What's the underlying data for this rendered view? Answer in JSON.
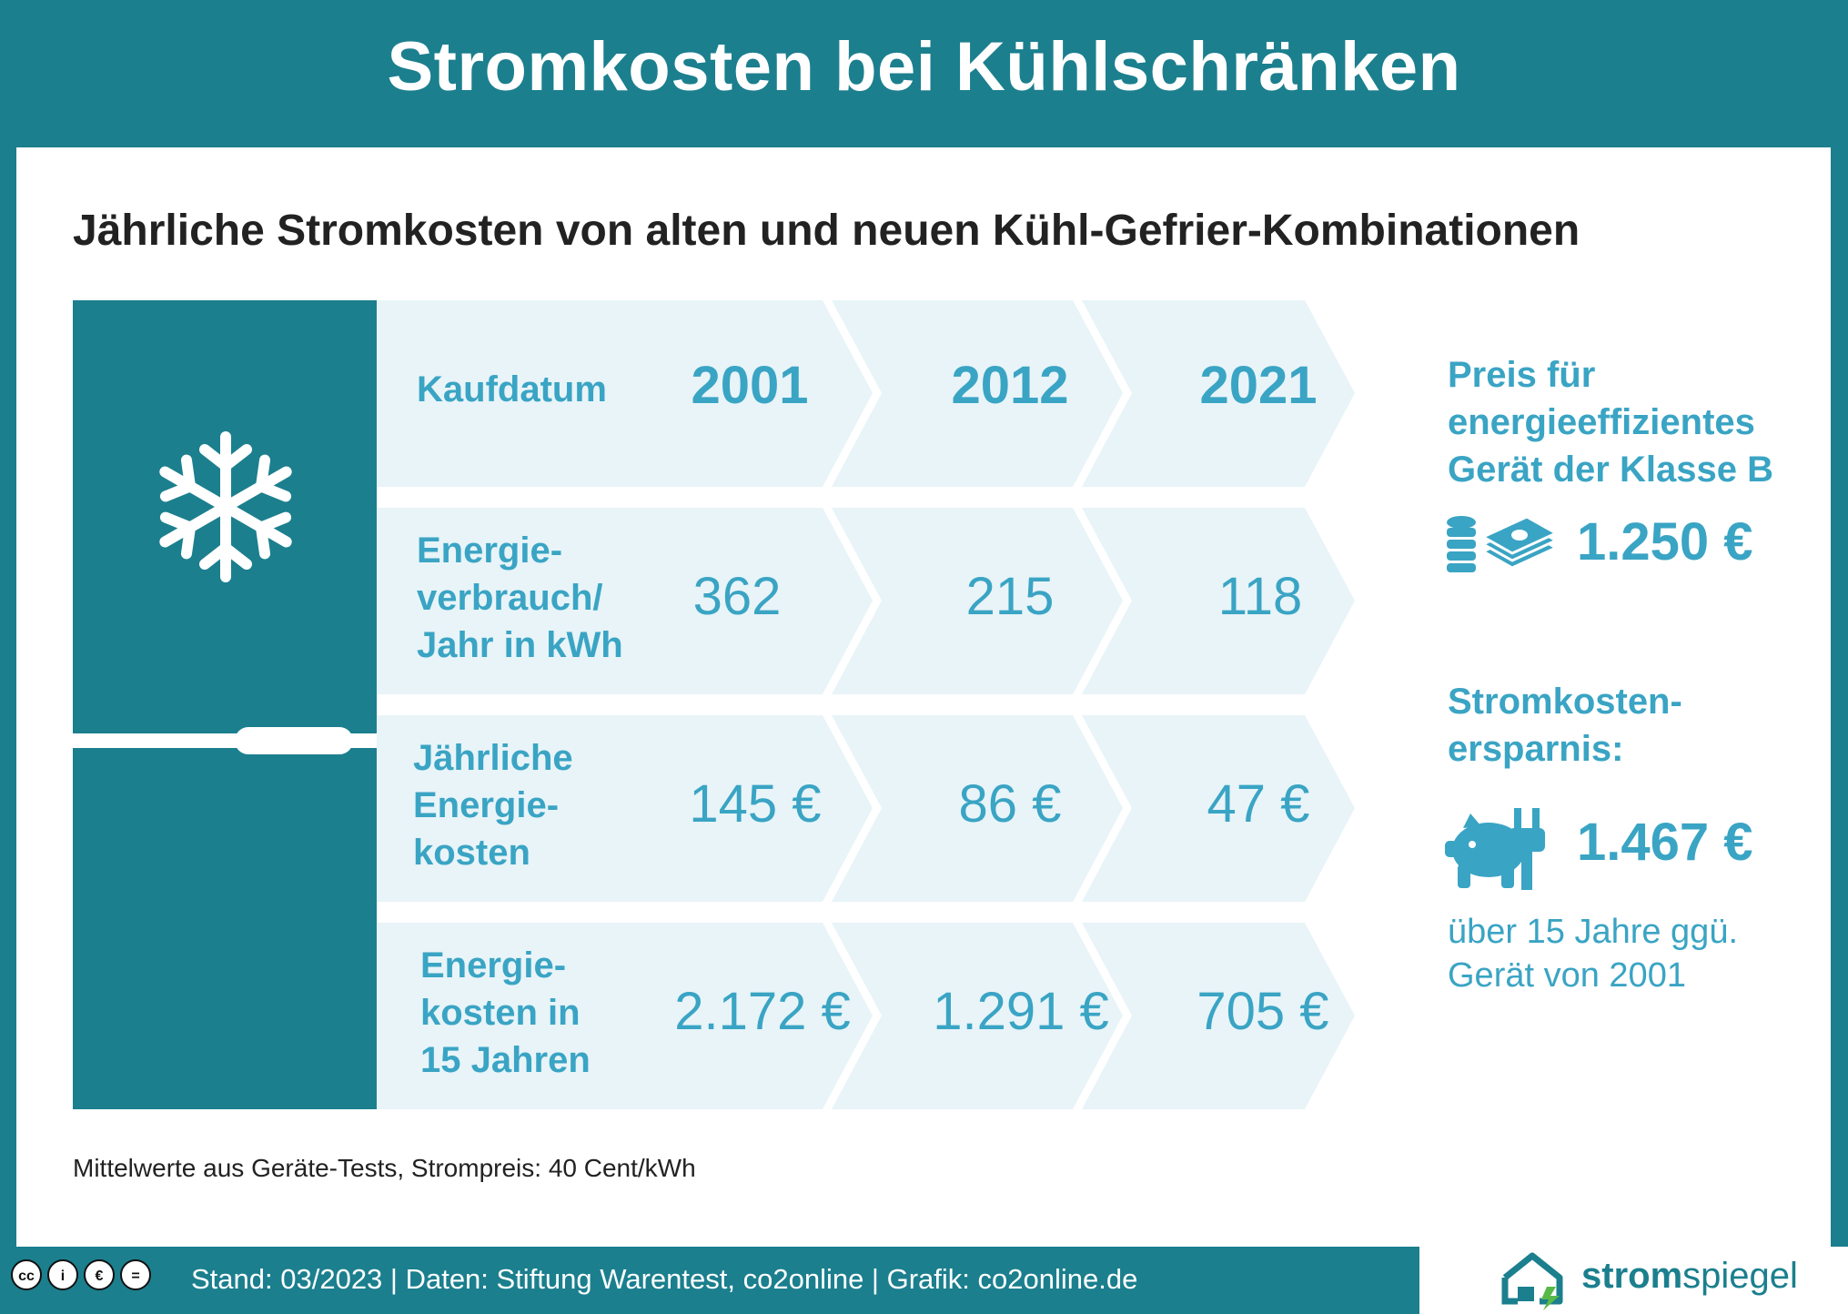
{
  "title": "Stromkosten bei Kühlschränken",
  "subtitle": "Jährliche Stromkosten von alten und neuen Kühl-Gefrier-Kombinationen",
  "table": {
    "rows": [
      {
        "label": [
          "Kaufdatum"
        ],
        "values": [
          "2001",
          "2012",
          "2021"
        ],
        "kind": "year"
      },
      {
        "label": [
          "Energie-",
          "verbrauch/",
          "Jahr in kWh"
        ],
        "values": [
          "362",
          "215",
          "118"
        ],
        "kind": "val"
      },
      {
        "label": [
          "Jährliche",
          "Energie-",
          "kosten"
        ],
        "values": [
          "145 €",
          "86 €",
          "47 €"
        ],
        "kind": "val"
      },
      {
        "label": [
          "Energie-",
          "kosten in",
          "15 Jahren"
        ],
        "values": [
          "2.172 €",
          "1.291 €",
          "705 €"
        ],
        "kind": "val"
      }
    ]
  },
  "right": {
    "price_title": [
      "Preis für",
      "energieeffizientes",
      "Gerät der Klasse B"
    ],
    "price_value": "1.250 €",
    "savings_title": [
      "Stromkosten-",
      "ersparnis:"
    ],
    "savings_value": "1.467 €",
    "savings_note": [
      "über 15 Jahre ggü.",
      "Gerät von 2001"
    ]
  },
  "footnote": "Mittelwerte aus Geräte-Tests, Strompreis: 40 Cent/kWh",
  "footer": {
    "text": "Stand: 03/2023  |  Daten: Stiftung Warentest, co2online  |  Grafik: co2online.de",
    "cc_icons": [
      "cc",
      "i",
      "€",
      "="
    ],
    "logo_bold": "strom",
    "logo_light": "spiegel"
  },
  "colors": {
    "teal": "#1b7f8e",
    "accent": "#3aa4c4",
    "light": "#e8f4f8"
  }
}
